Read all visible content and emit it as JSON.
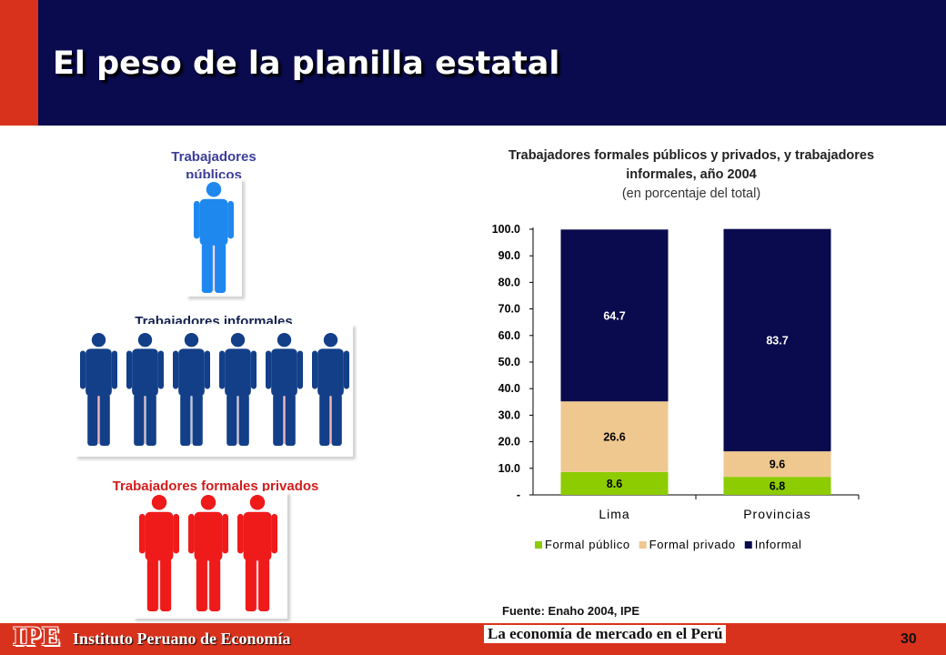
{
  "slide": {
    "title": "El peso de la planilla estatal",
    "source": "Fuente: Enaho 2004, IPE",
    "page_number": "30"
  },
  "figures": {
    "publicos": {
      "label": "Trabajadores públicos",
      "count": 1,
      "color": "#1e88ef",
      "label_color": "#3b3e9a"
    },
    "informales": {
      "label": "Trabajadores informales",
      "count": 6,
      "color": "#123f88",
      "label_color": "#14224f"
    },
    "privados": {
      "label": "Trabajadores formales privados",
      "count": 3,
      "color": "#ef1a1a",
      "label_color": "#d21c1c"
    }
  },
  "footer": {
    "logo": "IPE",
    "org": "Instituto Peruano de Economía",
    "tagline": "La economía de mercado en el Perú"
  },
  "chart_data": {
    "type": "bar",
    "stacked": true,
    "title": "Trabajadores formales públicos y privados, y trabajadores informales, año 2004",
    "subtitle": "(en porcentaje del total)",
    "categories": [
      "Lima",
      "Provincias"
    ],
    "series": [
      {
        "name": "Formal público",
        "values": [
          8.6,
          6.8
        ],
        "color": "#8ccc00"
      },
      {
        "name": "Formal privado",
        "values": [
          26.6,
          9.6
        ],
        "color": "#efc88f"
      },
      {
        "name": "Informal",
        "values": [
          64.7,
          83.7
        ],
        "color": "#0a0a4e"
      }
    ],
    "ylim": [
      0,
      100
    ],
    "yticks": [
      "-",
      "10.0",
      "20.0",
      "30.0",
      "40.0",
      "50.0",
      "60.0",
      "70.0",
      "80.0",
      "90.0",
      "100.0"
    ],
    "legend_position": "bottom",
    "grid": false
  }
}
